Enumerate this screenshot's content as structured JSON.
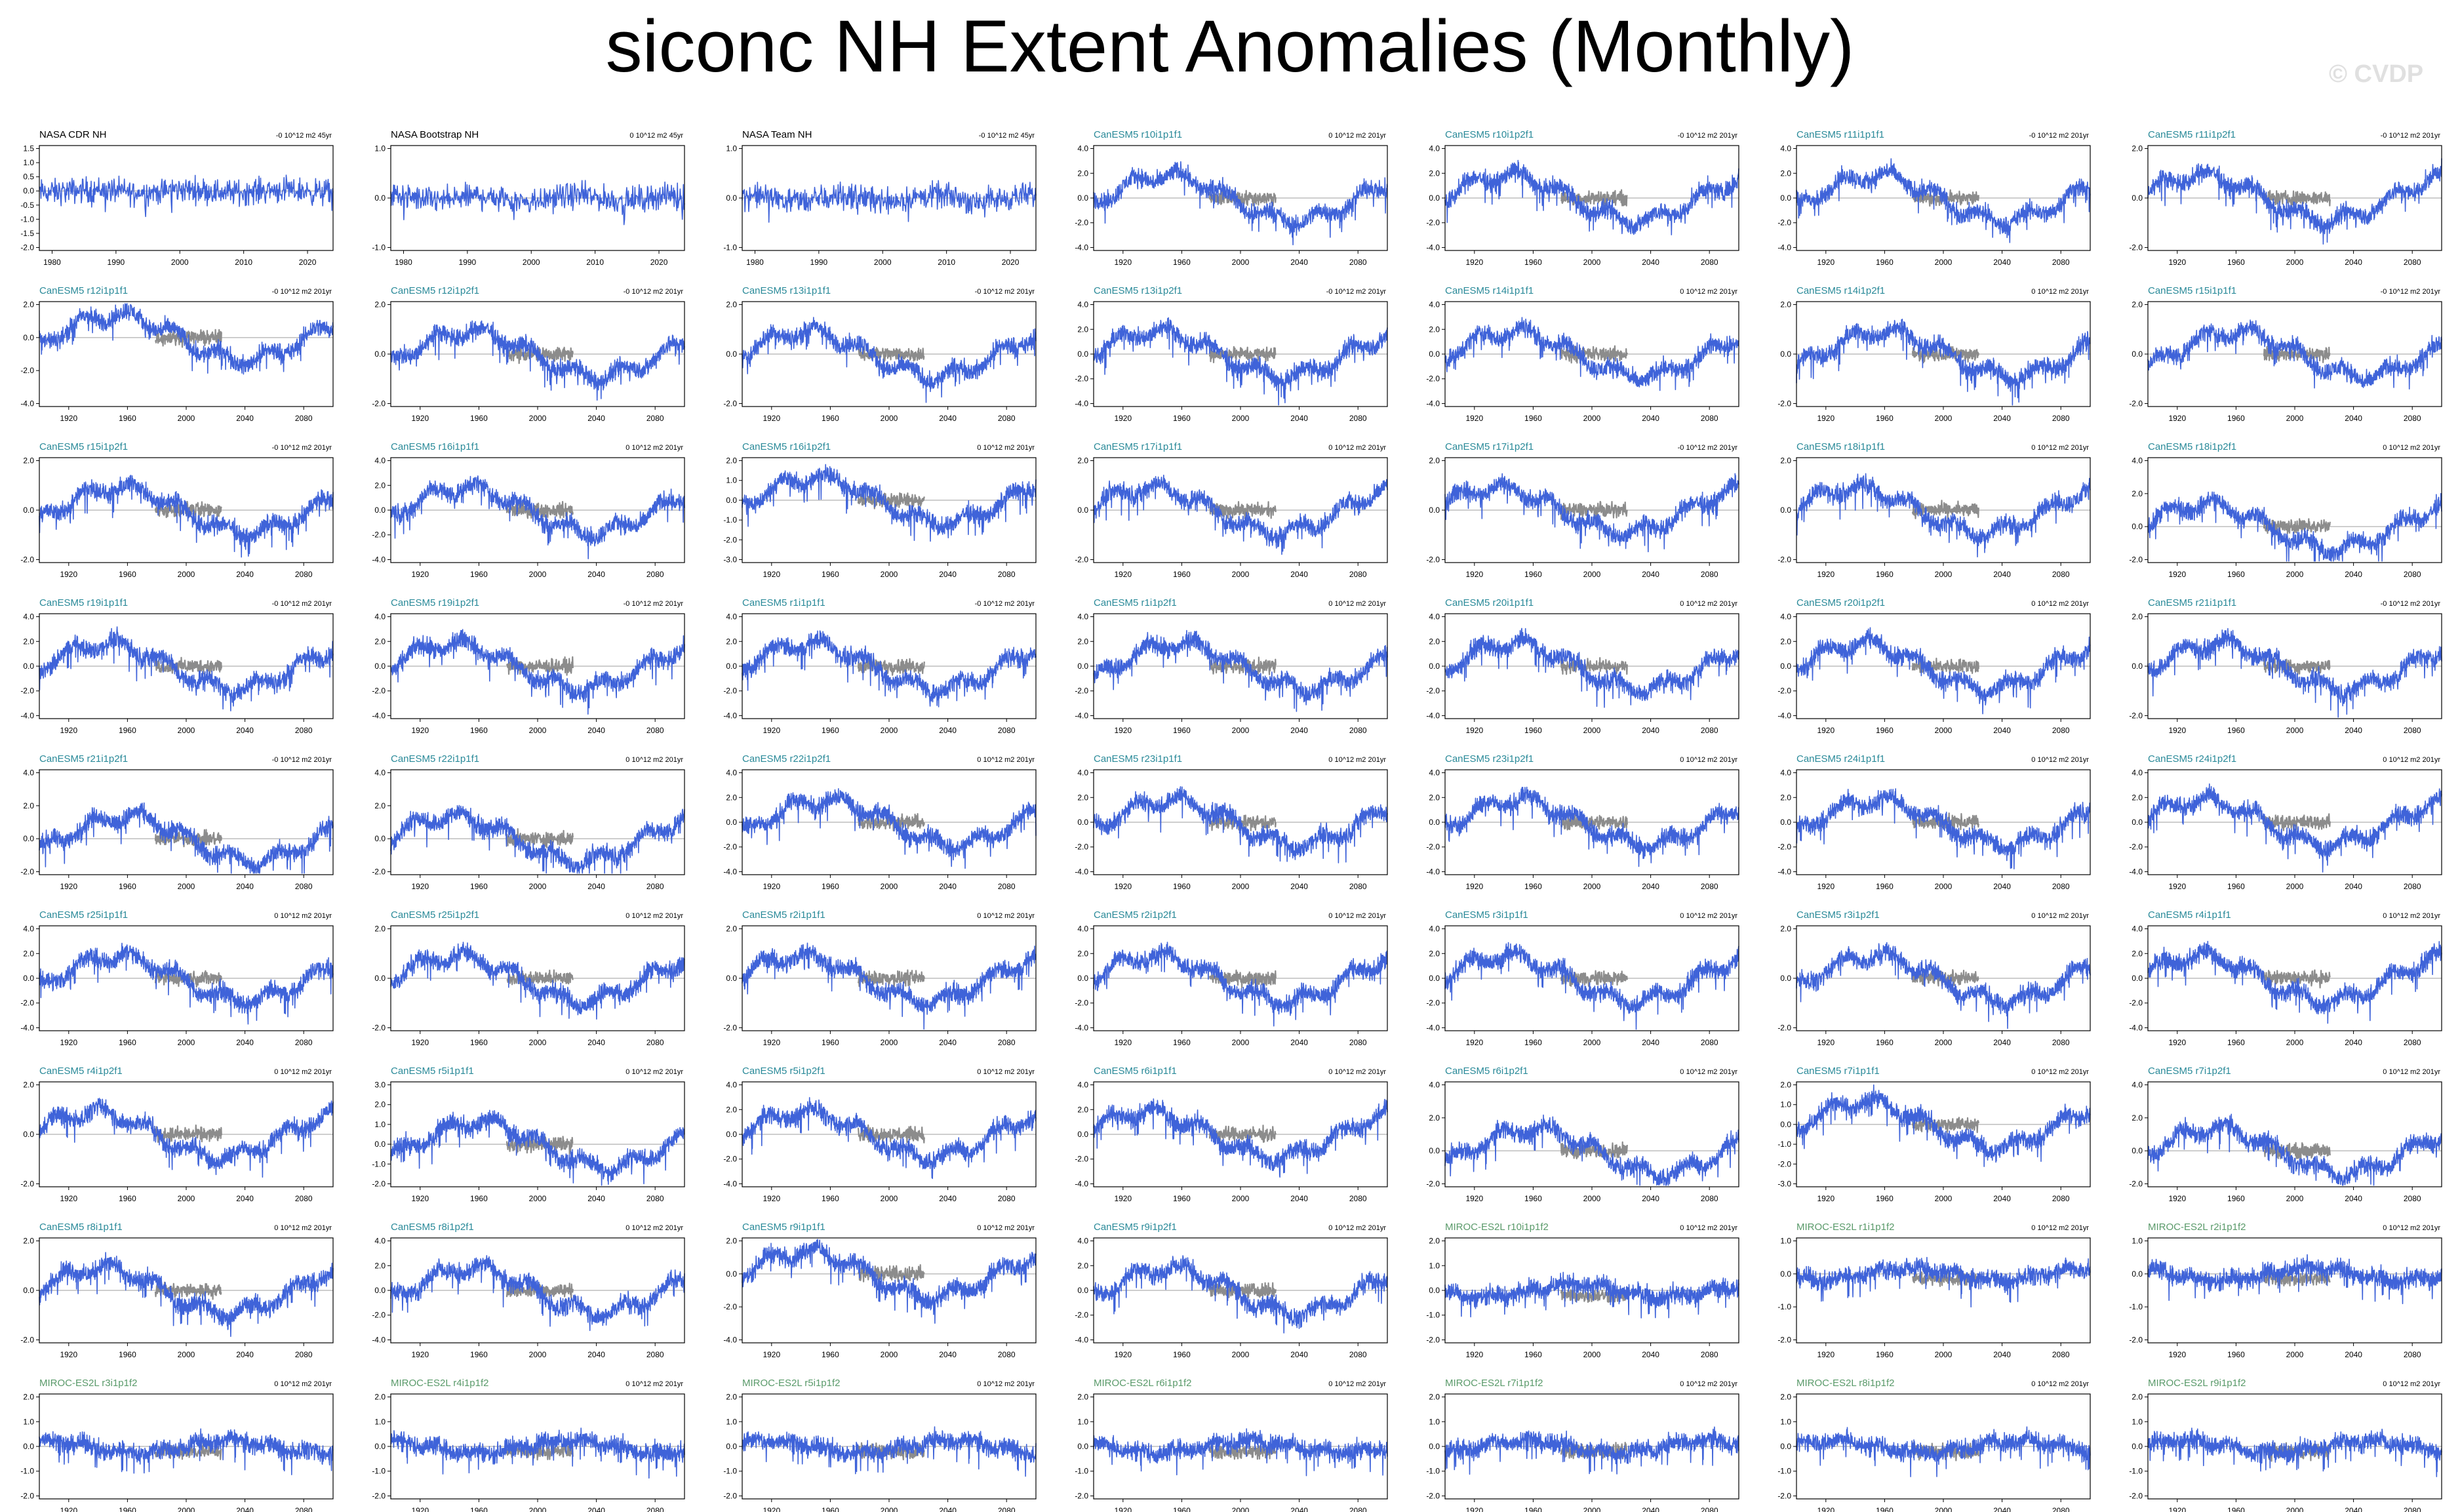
{
  "title": "siconc NH Extent Anomalies (Monthly)",
  "watermark": "© CVDP",
  "colors": {
    "obs": "#000000",
    "canesm": "#2a8a99",
    "miroc": "#5a9a6a",
    "model_line": "#3f63d9",
    "obs_overlay": "#8c8c8c",
    "zero_line": "#b0b0b0"
  },
  "chart_data": {
    "type": "line",
    "layout": {
      "columns": 7,
      "rows": 9
    },
    "axis_templates": {
      "obs": {
        "xlim": [
          1978,
          2024
        ],
        "xticks": [
          1980,
          1990,
          2000,
          2010,
          2020
        ]
      },
      "model": {
        "xlim": [
          1900,
          2100
        ],
        "xticks": [
          1920,
          1960,
          2000,
          2040,
          2080
        ]
      }
    },
    "series_names": {
      "model": "",
      "obs_overlay": ""
    },
    "panels": [
      {
        "label": "NASA CDR NH",
        "group": "obs",
        "trend": "-0 10^12 m2 45yr",
        "yticks": [
          1.5,
          1.0,
          0.5,
          0.0,
          -0.5,
          -1.0,
          -1.5,
          -2.0
        ]
      },
      {
        "label": "NASA Bootstrap NH",
        "group": "obs",
        "trend": "0 10^12 m2 45yr",
        "yticks": [
          1.0,
          0.0,
          -1.0
        ]
      },
      {
        "label": "NASA Team NH",
        "group": "obs",
        "trend": "-0 10^12 m2 45yr",
        "yticks": [
          1.0,
          0.0,
          -1.0
        ]
      },
      {
        "label": "CanESM5 r10i1p1f1",
        "group": "canesm",
        "trend": "0 10^12 m2 201yr",
        "yticks": [
          4.0,
          2.0,
          0.0,
          -2.0,
          -4.0
        ]
      },
      {
        "label": "CanESM5 r10i1p2f1",
        "group": "canesm",
        "trend": "-0 10^12 m2 201yr",
        "yticks": [
          4.0,
          2.0,
          0.0,
          -2.0,
          -4.0
        ]
      },
      {
        "label": "CanESM5 r11i1p1f1",
        "group": "canesm",
        "trend": "-0 10^12 m2 201yr",
        "yticks": [
          4.0,
          2.0,
          0.0,
          -2.0,
          -4.0
        ]
      },
      {
        "label": "CanESM5 r11i1p2f1",
        "group": "canesm",
        "trend": "-0 10^12 m2 201yr",
        "yticks": [
          2.0,
          0.0,
          -2.0
        ]
      },
      {
        "label": "CanESM5 r12i1p1f1",
        "group": "canesm",
        "trend": "-0 10^12 m2 201yr",
        "yticks": [
          2.0,
          0.0,
          -2.0,
          -4.0
        ]
      },
      {
        "label": "CanESM5 r12i1p2f1",
        "group": "canesm",
        "trend": "-0 10^12 m2 201yr",
        "yticks": [
          2.0,
          0.0,
          -2.0
        ]
      },
      {
        "label": "CanESM5 r13i1p1f1",
        "group": "canesm",
        "trend": "-0 10^12 m2 201yr",
        "yticks": [
          2.0,
          0.0,
          -2.0
        ]
      },
      {
        "label": "CanESM5 r13i1p2f1",
        "group": "canesm",
        "trend": "-0 10^12 m2 201yr",
        "yticks": [
          4.0,
          2.0,
          0.0,
          -2.0,
          -4.0
        ]
      },
      {
        "label": "CanESM5 r14i1p1f1",
        "group": "canesm",
        "trend": "0 10^12 m2 201yr",
        "yticks": [
          4.0,
          2.0,
          0.0,
          -2.0,
          -4.0
        ]
      },
      {
        "label": "CanESM5 r14i1p2f1",
        "group": "canesm",
        "trend": "0 10^12 m2 201yr",
        "yticks": [
          2.0,
          0.0,
          -2.0
        ]
      },
      {
        "label": "CanESM5 r15i1p1f1",
        "group": "canesm",
        "trend": "-0 10^12 m2 201yr",
        "yticks": [
          2.0,
          0.0,
          -2.0
        ]
      },
      {
        "label": "CanESM5 r15i1p2f1",
        "group": "canesm",
        "trend": "-0 10^12 m2 201yr",
        "yticks": [
          2.0,
          0.0,
          -2.0
        ]
      },
      {
        "label": "CanESM5 r16i1p1f1",
        "group": "canesm",
        "trend": "0 10^12 m2 201yr",
        "yticks": [
          4.0,
          2.0,
          0.0,
          -2.0,
          -4.0
        ]
      },
      {
        "label": "CanESM5 r16i1p2f1",
        "group": "canesm",
        "trend": "0 10^12 m2 201yr",
        "yticks": [
          2.0,
          1.0,
          0.0,
          -1.0,
          -2.0,
          -3.0
        ]
      },
      {
        "label": "CanESM5 r17i1p1f1",
        "group": "canesm",
        "trend": "0 10^12 m2 201yr",
        "yticks": [
          2.0,
          0.0,
          -2.0
        ]
      },
      {
        "label": "CanESM5 r17i1p2f1",
        "group": "canesm",
        "trend": "-0 10^12 m2 201yr",
        "yticks": [
          2.0,
          0.0,
          -2.0
        ]
      },
      {
        "label": "CanESM5 r18i1p1f1",
        "group": "canesm",
        "trend": "0 10^12 m2 201yr",
        "yticks": [
          2.0,
          0.0,
          -2.0
        ]
      },
      {
        "label": "CanESM5 r18i1p2f1",
        "group": "canesm",
        "trend": "0 10^12 m2 201yr",
        "yticks": [
          4.0,
          2.0,
          0.0,
          -2.0
        ]
      },
      {
        "label": "CanESM5 r19i1p1f1",
        "group": "canesm",
        "trend": "-0 10^12 m2 201yr",
        "yticks": [
          4.0,
          2.0,
          0.0,
          -2.0,
          -4.0
        ]
      },
      {
        "label": "CanESM5 r19i1p2f1",
        "group": "canesm",
        "trend": "-0 10^12 m2 201yr",
        "yticks": [
          4.0,
          2.0,
          0.0,
          -2.0,
          -4.0
        ]
      },
      {
        "label": "CanESM5 r1i1p1f1",
        "group": "canesm",
        "trend": "-0 10^12 m2 201yr",
        "yticks": [
          4.0,
          2.0,
          0.0,
          -2.0,
          -4.0
        ]
      },
      {
        "label": "CanESM5 r1i1p2f1",
        "group": "canesm",
        "trend": "0 10^12 m2 201yr",
        "yticks": [
          4.0,
          2.0,
          0.0,
          -2.0,
          -4.0
        ]
      },
      {
        "label": "CanESM5 r20i1p1f1",
        "group": "canesm",
        "trend": "0 10^12 m2 201yr",
        "yticks": [
          4.0,
          2.0,
          0.0,
          -2.0,
          -4.0
        ]
      },
      {
        "label": "CanESM5 r20i1p2f1",
        "group": "canesm",
        "trend": "0 10^12 m2 201yr",
        "yticks": [
          4.0,
          2.0,
          0.0,
          -2.0,
          -4.0
        ]
      },
      {
        "label": "CanESM5 r21i1p1f1",
        "group": "canesm",
        "trend": "-0 10^12 m2 201yr",
        "yticks": [
          2.0,
          0.0,
          -2.0
        ]
      },
      {
        "label": "CanESM5 r21i1p2f1",
        "group": "canesm",
        "trend": "-0 10^12 m2 201yr",
        "yticks": [
          4.0,
          2.0,
          0.0,
          -2.0
        ]
      },
      {
        "label": "CanESM5 r22i1p1f1",
        "group": "canesm",
        "trend": "0 10^12 m2 201yr",
        "yticks": [
          4.0,
          2.0,
          0.0,
          -2.0
        ]
      },
      {
        "label": "CanESM5 r22i1p2f1",
        "group": "canesm",
        "trend": "0 10^12 m2 201yr",
        "yticks": [
          4.0,
          2.0,
          0.0,
          -2.0,
          -4.0
        ]
      },
      {
        "label": "CanESM5 r23i1p1f1",
        "group": "canesm",
        "trend": "0 10^12 m2 201yr",
        "yticks": [
          4.0,
          2.0,
          0.0,
          -2.0,
          -4.0
        ]
      },
      {
        "label": "CanESM5 r23i1p2f1",
        "group": "canesm",
        "trend": "0 10^12 m2 201yr",
        "yticks": [
          4.0,
          2.0,
          0.0,
          -2.0,
          -4.0
        ]
      },
      {
        "label": "CanESM5 r24i1p1f1",
        "group": "canesm",
        "trend": "0 10^12 m2 201yr",
        "yticks": [
          4.0,
          2.0,
          0.0,
          -2.0,
          -4.0
        ]
      },
      {
        "label": "CanESM5 r24i1p2f1",
        "group": "canesm",
        "trend": "0 10^12 m2 201yr",
        "yticks": [
          4.0,
          2.0,
          0.0,
          -2.0,
          -4.0
        ]
      },
      {
        "label": "CanESM5 r25i1p1f1",
        "group": "canesm",
        "trend": "0 10^12 m2 201yr",
        "yticks": [
          4.0,
          2.0,
          0.0,
          -2.0,
          -4.0
        ]
      },
      {
        "label": "CanESM5 r25i1p2f1",
        "group": "canesm",
        "trend": "0 10^12 m2 201yr",
        "yticks": [
          2.0,
          0.0,
          -2.0
        ]
      },
      {
        "label": "CanESM5 r2i1p1f1",
        "group": "canesm",
        "trend": "0 10^12 m2 201yr",
        "yticks": [
          2.0,
          0.0,
          -2.0
        ]
      },
      {
        "label": "CanESM5 r2i1p2f1",
        "group": "canesm",
        "trend": "0 10^12 m2 201yr",
        "yticks": [
          4.0,
          2.0,
          0.0,
          -2.0,
          -4.0
        ]
      },
      {
        "label": "CanESM5 r3i1p1f1",
        "group": "canesm",
        "trend": "0 10^12 m2 201yr",
        "yticks": [
          4.0,
          2.0,
          0.0,
          -2.0,
          -4.0
        ]
      },
      {
        "label": "CanESM5 r3i1p2f1",
        "group": "canesm",
        "trend": "0 10^12 m2 201yr",
        "yticks": [
          2.0,
          0.0,
          -2.0
        ]
      },
      {
        "label": "CanESM5 r4i1p1f1",
        "group": "canesm",
        "trend": "0 10^12 m2 201yr",
        "yticks": [
          4.0,
          2.0,
          0.0,
          -2.0,
          -4.0
        ]
      },
      {
        "label": "CanESM5 r4i1p2f1",
        "group": "canesm",
        "trend": "0 10^12 m2 201yr",
        "yticks": [
          2.0,
          0.0,
          -2.0
        ]
      },
      {
        "label": "CanESM5 r5i1p1f1",
        "group": "canesm",
        "trend": "0 10^12 m2 201yr",
        "yticks": [
          3.0,
          2.0,
          1.0,
          0.0,
          -1.0,
          -2.0
        ]
      },
      {
        "label": "CanESM5 r5i1p2f1",
        "group": "canesm",
        "trend": "0 10^12 m2 201yr",
        "yticks": [
          4.0,
          2.0,
          0.0,
          -2.0,
          -4.0
        ]
      },
      {
        "label": "CanESM5 r6i1p1f1",
        "group": "canesm",
        "trend": "0 10^12 m2 201yr",
        "yticks": [
          4.0,
          2.0,
          0.0,
          -2.0,
          -4.0
        ]
      },
      {
        "label": "CanESM5 r6i1p2f1",
        "group": "canesm",
        "trend": "0 10^12 m2 201yr",
        "yticks": [
          4.0,
          2.0,
          0.0,
          -2.0
        ]
      },
      {
        "label": "CanESM5 r7i1p1f1",
        "group": "canesm",
        "trend": "0 10^12 m2 201yr",
        "yticks": [
          2.0,
          1.0,
          0.0,
          -1.0,
          -2.0,
          -3.0
        ]
      },
      {
        "label": "CanESM5 r7i1p2f1",
        "group": "canesm",
        "trend": "0 10^12 m2 201yr",
        "yticks": [
          4.0,
          2.0,
          0.0,
          -2.0
        ]
      },
      {
        "label": "CanESM5 r8i1p1f1",
        "group": "canesm",
        "trend": "0 10^12 m2 201yr",
        "yticks": [
          2.0,
          0.0,
          -2.0
        ]
      },
      {
        "label": "CanESM5 r8i1p2f1",
        "group": "canesm",
        "trend": "0 10^12 m2 201yr",
        "yticks": [
          4.0,
          2.0,
          0.0,
          -2.0,
          -4.0
        ]
      },
      {
        "label": "CanESM5 r9i1p1f1",
        "group": "canesm",
        "trend": "0 10^12 m2 201yr",
        "yticks": [
          2.0,
          0.0,
          -2.0,
          -4.0
        ]
      },
      {
        "label": "CanESM5 r9i1p2f1",
        "group": "canesm",
        "trend": "0 10^12 m2 201yr",
        "yticks": [
          4.0,
          2.0,
          0.0,
          -2.0,
          -4.0
        ]
      },
      {
        "label": "MIROC-ES2L r10i1p1f2",
        "group": "miroc",
        "trend": "0 10^12 m2 201yr",
        "yticks": [
          2.0,
          1.0,
          0.0,
          -1.0,
          -2.0
        ]
      },
      {
        "label": "MIROC-ES2L r1i1p1f2",
        "group": "miroc",
        "trend": "0 10^12 m2 201yr",
        "yticks": [
          1.0,
          0.0,
          -1.0,
          -2.0
        ]
      },
      {
        "label": "MIROC-ES2L r2i1p1f2",
        "group": "miroc",
        "trend": "0 10^12 m2 201yr",
        "yticks": [
          1.0,
          0.0,
          -1.0,
          -2.0
        ]
      },
      {
        "label": "MIROC-ES2L r3i1p1f2",
        "group": "miroc",
        "trend": "0 10^12 m2 201yr",
        "yticks": [
          2.0,
          1.0,
          0.0,
          -1.0,
          -2.0
        ]
      },
      {
        "label": "MIROC-ES2L r4i1p1f2",
        "group": "miroc",
        "trend": "0 10^12 m2 201yr",
        "yticks": [
          2.0,
          1.0,
          0.0,
          -1.0,
          -2.0
        ]
      },
      {
        "label": "MIROC-ES2L r5i1p1f2",
        "group": "miroc",
        "trend": "0 10^12 m2 201yr",
        "yticks": [
          2.0,
          1.0,
          0.0,
          -1.0,
          -2.0
        ]
      },
      {
        "label": "MIROC-ES2L r6i1p1f2",
        "group": "miroc",
        "trend": "0 10^12 m2 201yr",
        "yticks": [
          2.0,
          1.0,
          0.0,
          -1.0,
          -2.0
        ]
      },
      {
        "label": "MIROC-ES2L r7i1p1f2",
        "group": "miroc",
        "trend": "0 10^12 m2 201yr",
        "yticks": [
          2.0,
          1.0,
          0.0,
          -1.0,
          -2.0
        ]
      },
      {
        "label": "MIROC-ES2L r8i1p1f2",
        "group": "miroc",
        "trend": "0 10^12 m2 201yr",
        "yticks": [
          2.0,
          1.0,
          0.0,
          -1.0,
          -2.0
        ]
      },
      {
        "label": "MIROC-ES2L r9i1p1f2",
        "group": "miroc",
        "trend": "0 10^12 m2 201yr",
        "yticks": [
          2.0,
          1.0,
          0.0,
          -1.0,
          -2.0
        ]
      }
    ]
  }
}
